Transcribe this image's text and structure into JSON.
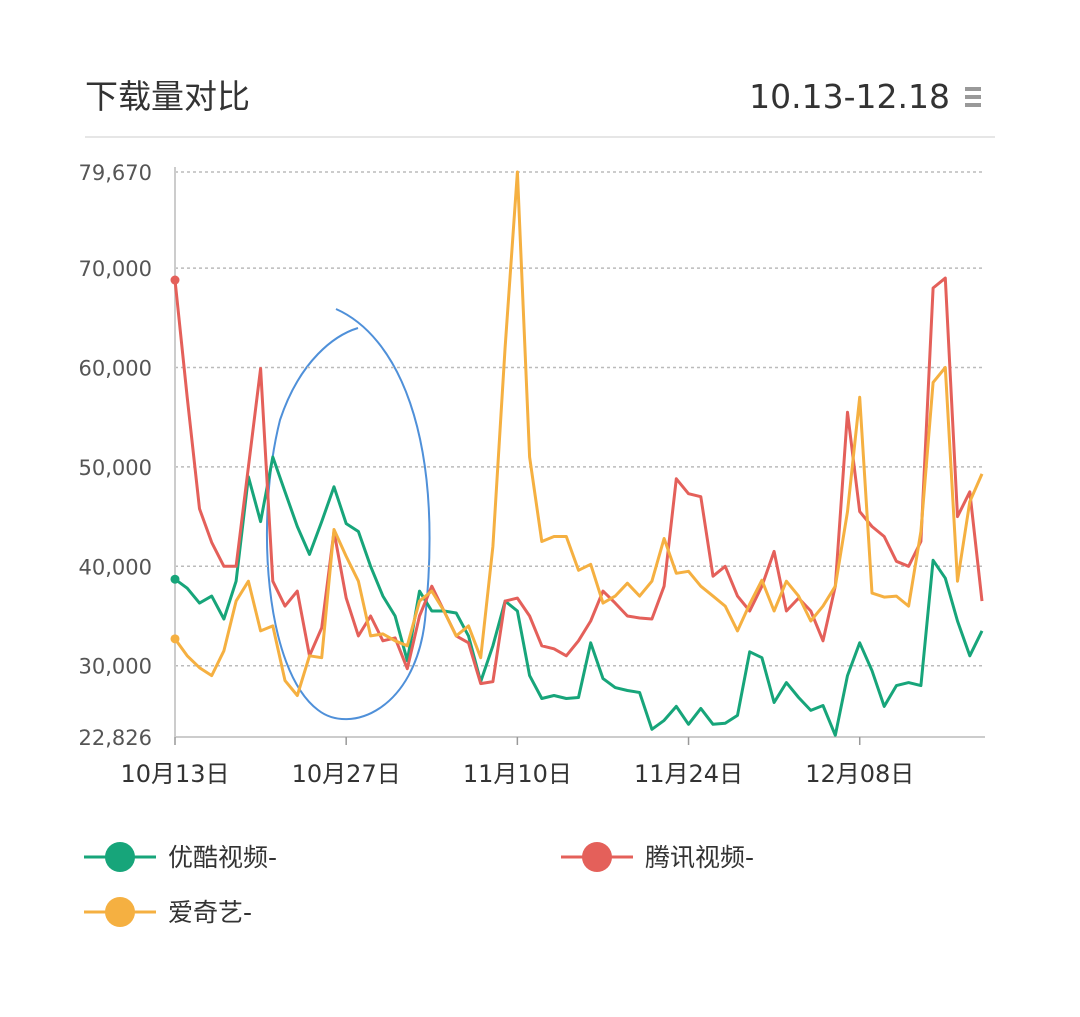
{
  "chart_data": {
    "type": "line",
    "title": "下载量对比",
    "subtitle": "10.13-12.18",
    "categories": [
      "10月13日",
      null,
      null,
      null,
      null,
      null,
      null,
      null,
      null,
      null,
      null,
      null,
      null,
      null,
      "10月27日",
      null,
      null,
      null,
      null,
      null,
      null,
      null,
      null,
      null,
      null,
      null,
      null,
      null,
      "11月10日",
      null,
      null,
      null,
      null,
      null,
      null,
      null,
      null,
      null,
      null,
      null,
      null,
      null,
      "11月24日",
      null,
      null,
      null,
      null,
      null,
      null,
      null,
      null,
      null,
      null,
      null,
      null,
      null,
      "12月08日",
      null,
      null,
      null,
      null,
      null,
      null,
      null,
      null,
      null,
      null
    ],
    "ylim": [
      22826,
      79670
    ],
    "yticks": [
      {
        "value": 22826,
        "label": "22,826"
      },
      {
        "value": 30000,
        "label": "30,000"
      },
      {
        "value": 40000,
        "label": "40,000"
      },
      {
        "value": 50000,
        "label": "50,000"
      },
      {
        "value": 60000,
        "label": "60,000"
      },
      {
        "value": 70000,
        "label": "70,000"
      },
      {
        "value": 79670,
        "label": "79,670"
      }
    ],
    "grid": true,
    "legend": "bottom",
    "series": [
      {
        "name": "优酷视频-",
        "color": "#17a57a",
        "values": [
          38700,
          37800,
          36300,
          37000,
          34700,
          38500,
          49000,
          44500,
          51000,
          47500,
          44000,
          41200,
          44500,
          48000,
          44300,
          43500,
          40000,
          37000,
          35000,
          30500,
          37500,
          35500,
          35500,
          35300,
          33000,
          28400,
          32000,
          36500,
          35500,
          29000,
          26700,
          27000,
          26700,
          26800,
          32300,
          28700,
          27800,
          27500,
          27300,
          23600,
          24500,
          25900,
          24100,
          25700,
          24100,
          24200,
          25000,
          31400,
          30800,
          26300,
          28300,
          26800,
          25500,
          26000,
          23000,
          29000,
          32300,
          29500,
          25900,
          28000,
          28300,
          28000,
          40600,
          38800,
          34500,
          31000,
          33500
        ]
      },
      {
        "name": "腾讯视频-",
        "color": "#e4605a",
        "values": [
          68800,
          57000,
          45800,
          42400,
          40000,
          40000,
          50000,
          59900,
          38500,
          36000,
          37500,
          31000,
          33800,
          43500,
          36800,
          33000,
          35000,
          32500,
          32800,
          29700,
          35000,
          38000,
          35500,
          33000,
          32300,
          28200,
          28400,
          36500,
          36800,
          35000,
          32000,
          31700,
          31000,
          32500,
          34500,
          37500,
          36300,
          35000,
          34800,
          34700,
          38000,
          48800,
          47300,
          47000,
          39000,
          40000,
          37000,
          35500,
          38000,
          41500,
          35500,
          36800,
          35500,
          32500,
          38000,
          55500,
          45500,
          44000,
          43000,
          40500,
          40000,
          42500,
          68000,
          69000,
          45000,
          47500,
          36500
        ]
      },
      {
        "name": "爱奇艺-",
        "color": "#f5b041",
        "values": [
          32700,
          31000,
          29800,
          29000,
          31500,
          36500,
          38500,
          33500,
          34000,
          28500,
          27000,
          31000,
          30800,
          43700,
          41000,
          38500,
          33000,
          33200,
          32500,
          32000,
          36500,
          37500,
          35500,
          33000,
          34000,
          30800,
          42000,
          62000,
          79670,
          51000,
          42500,
          43000,
          43000,
          39600,
          40200,
          36300,
          37000,
          38300,
          37000,
          38500,
          42800,
          39300,
          39500,
          38000,
          37000,
          36000,
          33500,
          36200,
          38600,
          35500,
          38500,
          37000,
          34500,
          36000,
          38000,
          45500,
          57000,
          37300,
          36900,
          37000,
          36000,
          43500,
          58500,
          60000,
          38500,
          46500,
          49300
        ]
      }
    ]
  }
}
